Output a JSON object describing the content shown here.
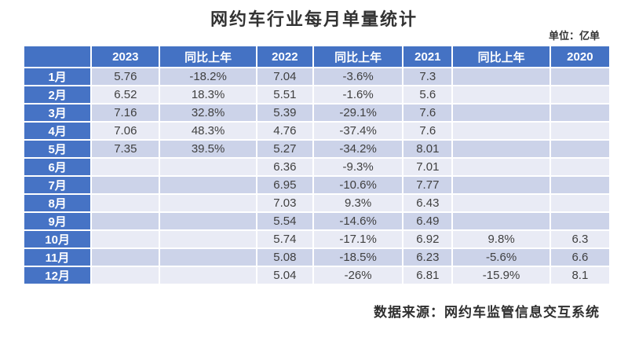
{
  "colors": {
    "header_bg": "#4472c4",
    "month_bg": "#4673c5",
    "row_odd_bg": "#ccd3e9",
    "row_even_bg": "#e9ebf5",
    "cell_text": "#404040"
  },
  "chart_data": {
    "type": "table",
    "title": "网约车行业每月单量统计",
    "unit_label": "单位：亿单",
    "source": "数据来源：网约车监管信息交互系统",
    "columns": [
      "",
      "2023",
      "同比上年",
      "2022",
      "同比上年",
      "2021",
      "同比上年",
      "2020"
    ],
    "rows": [
      [
        "1月",
        "5.76",
        "-18.2%",
        "7.04",
        "-3.6%",
        "7.3",
        "",
        ""
      ],
      [
        "2月",
        "6.52",
        "18.3%",
        "5.51",
        "-1.6%",
        "5.6",
        "",
        ""
      ],
      [
        "3月",
        "7.16",
        "32.8%",
        "5.39",
        "-29.1%",
        "7.6",
        "",
        ""
      ],
      [
        "4月",
        "7.06",
        "48.3%",
        "4.76",
        "-37.4%",
        "7.6",
        "",
        ""
      ],
      [
        "5月",
        "7.35",
        "39.5%",
        "5.27",
        "-34.2%",
        "8.01",
        "",
        ""
      ],
      [
        "6月",
        "",
        "",
        "6.36",
        "-9.3%",
        "7.01",
        "",
        ""
      ],
      [
        "7月",
        "",
        "",
        "6.95",
        "-10.6%",
        "7.77",
        "",
        ""
      ],
      [
        "8月",
        "",
        "",
        "7.03",
        "9.3%",
        "6.43",
        "",
        ""
      ],
      [
        "9月",
        "",
        "",
        "5.54",
        "-14.6%",
        "6.49",
        "",
        ""
      ],
      [
        "10月",
        "",
        "",
        "5.74",
        "-17.1%",
        "6.92",
        "9.8%",
        "6.3"
      ],
      [
        "11月",
        "",
        "",
        "5.08",
        "-18.5%",
        "6.23",
        "-5.6%",
        "6.6"
      ],
      [
        "12月",
        "",
        "",
        "5.04",
        "-26%",
        "6.81",
        "-15.9%",
        "8.1"
      ]
    ]
  }
}
